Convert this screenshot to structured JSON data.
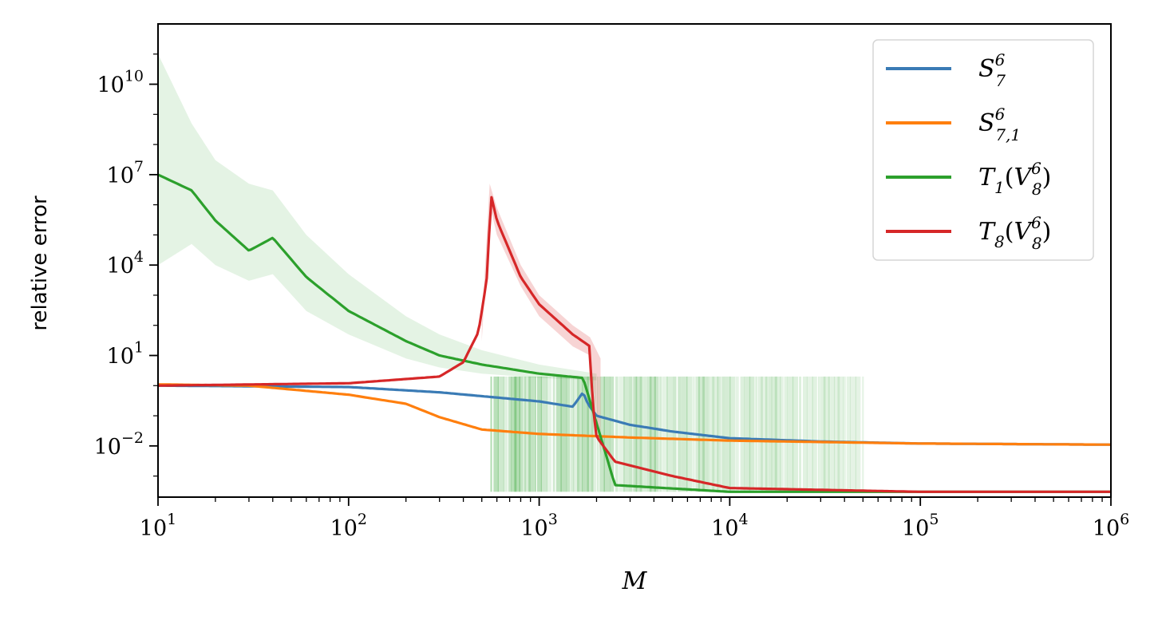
{
  "chart_data": {
    "type": "line",
    "title": "",
    "xlabel": "M",
    "ylabel": "relative error",
    "x_scale": "log",
    "y_scale": "log",
    "xlim": [
      10,
      1000000
    ],
    "ylim": [
      0.0002,
      1000000000000.0
    ],
    "grid": false,
    "legend_position": "top-right",
    "x_ticks": [
      {
        "base": "10",
        "exp": "1",
        "value": 10
      },
      {
        "base": "10",
        "exp": "2",
        "value": 100
      },
      {
        "base": "10",
        "exp": "3",
        "value": 1000
      },
      {
        "base": "10",
        "exp": "4",
        "value": 10000
      },
      {
        "base": "10",
        "exp": "5",
        "value": 100000
      },
      {
        "base": "10",
        "exp": "6",
        "value": 1000000
      }
    ],
    "y_ticks": [
      {
        "base": "10",
        "exp": "10",
        "value": 10000000000.0
      },
      {
        "base": "10",
        "exp": "7",
        "value": 10000000.0
      },
      {
        "base": "10",
        "exp": "4",
        "value": 10000.0
      },
      {
        "base": "10",
        "exp": "1",
        "value": 10
      },
      {
        "base": "10",
        "exp": "−2",
        "value": 0.01
      }
    ],
    "series": [
      {
        "name": "S_7^6",
        "legend": {
          "main": "S",
          "sup": "6",
          "sub": "7",
          "suffix": ""
        },
        "color": "#3a7bb5",
        "points": [
          [
            10,
            1.0
          ],
          [
            100,
            0.9
          ],
          [
            300,
            0.6
          ],
          [
            1000,
            0.3
          ],
          [
            1500,
            0.2
          ],
          [
            1700,
            0.6
          ],
          [
            1800,
            0.25
          ],
          [
            2000,
            0.1
          ],
          [
            3000,
            0.05
          ],
          [
            5000,
            0.03
          ],
          [
            10000,
            0.018
          ],
          [
            30000,
            0.014
          ],
          [
            100000,
            0.012
          ],
          [
            1000000,
            0.011
          ]
        ]
      },
      {
        "name": "S_{7,1}^6",
        "legend": {
          "main": "S",
          "sup": "6",
          "sub": "7,1",
          "suffix": ""
        },
        "color": "#ff7f0e",
        "points": [
          [
            10,
            1.1
          ],
          [
            30,
            1.0
          ],
          [
            100,
            0.5
          ],
          [
            200,
            0.25
          ],
          [
            300,
            0.09
          ],
          [
            500,
            0.035
          ],
          [
            1000,
            0.025
          ],
          [
            3000,
            0.019
          ],
          [
            10000,
            0.015
          ],
          [
            100000,
            0.012
          ],
          [
            1000000,
            0.011
          ]
        ]
      },
      {
        "name": "T_1(V_8^6)",
        "legend": {
          "main": "T",
          "sub": "1",
          "suffix": "(V",
          "sup2": "6",
          "sub2": "8",
          "close": ")"
        },
        "color": "#2ca02c",
        "points": [
          [
            10,
            10000000.0
          ],
          [
            15,
            3000000.0
          ],
          [
            20,
            300000.0
          ],
          [
            30,
            30000.0
          ],
          [
            40,
            80000.0
          ],
          [
            60,
            4000.0
          ],
          [
            100,
            300
          ],
          [
            200,
            30
          ],
          [
            300,
            10
          ],
          [
            500,
            5
          ],
          [
            1000,
            2.5
          ],
          [
            1700,
            1.8
          ],
          [
            2500,
            0.0005
          ],
          [
            10000,
            0.0003
          ],
          [
            1000000,
            0.0003
          ]
        ]
      },
      {
        "name": "T_8(V_8^6)",
        "legend": {
          "main": "T",
          "sub": "8",
          "suffix": "(V",
          "sup2": "6",
          "sub2": "8",
          "close": ")"
        },
        "color": "#d62728",
        "points": [
          [
            10,
            1.0
          ],
          [
            100,
            1.2
          ],
          [
            300,
            2.0
          ],
          [
            400,
            6.0
          ],
          [
            480,
            60
          ],
          [
            530,
            3000.0
          ],
          [
            560,
            2000000.0
          ],
          [
            600,
            300000.0
          ],
          [
            800,
            4000.0
          ],
          [
            1000,
            500
          ],
          [
            1500,
            50
          ],
          [
            1850,
            20
          ],
          [
            1900,
            0.3
          ],
          [
            2000,
            0.02
          ],
          [
            2500,
            0.003
          ],
          [
            5000,
            0.001
          ],
          [
            10000,
            0.0004
          ],
          [
            100000,
            0.0003
          ],
          [
            1000000,
            0.0003
          ]
        ]
      }
    ],
    "bands": [
      {
        "series": "T_1(V_8^6)",
        "color": "#2ca02c",
        "opacity": 0.13,
        "upper": [
          [
            10,
            100000000000.0
          ],
          [
            15,
            500000000.0
          ],
          [
            20,
            30000000.0
          ],
          [
            30,
            5000000.0
          ],
          [
            40,
            3000000.0
          ],
          [
            60,
            100000.0
          ],
          [
            100,
            5000.0
          ],
          [
            200,
            200
          ],
          [
            300,
            50
          ],
          [
            500,
            15
          ],
          [
            1000,
            5
          ],
          [
            2000,
            2.5
          ]
        ],
        "lower": [
          [
            10,
            10000.0
          ],
          [
            15,
            50000.0
          ],
          [
            20,
            10000.0
          ],
          [
            30,
            3000.0
          ],
          [
            40,
            5000.0
          ],
          [
            60,
            300
          ],
          [
            100,
            50
          ],
          [
            200,
            8
          ],
          [
            300,
            4
          ],
          [
            500,
            2.5
          ],
          [
            1000,
            1.8
          ],
          [
            2000,
            1.5
          ]
        ]
      },
      {
        "series": "T_8(V_8^6)",
        "color": "#d62728",
        "opacity": 0.2,
        "upper": [
          [
            500,
            100
          ],
          [
            550,
            5000000.0
          ],
          [
            600,
            800000.0
          ],
          [
            800,
            10000.0
          ],
          [
            1000,
            1000.0
          ],
          [
            1500,
            100
          ],
          [
            1850,
            40
          ],
          [
            2100,
            8
          ]
        ],
        "lower": [
          [
            500,
            30
          ],
          [
            550,
            1000000.0
          ],
          [
            600,
            100000.0
          ],
          [
            800,
            2000.0
          ],
          [
            1000,
            200
          ],
          [
            1500,
            20
          ],
          [
            1850,
            10
          ],
          [
            2100,
            0.005
          ]
        ]
      }
    ],
    "green_noise": {
      "x_start": 560,
      "x_end": 50000,
      "y_high": 2.0,
      "y_low": 0.0003
    }
  }
}
